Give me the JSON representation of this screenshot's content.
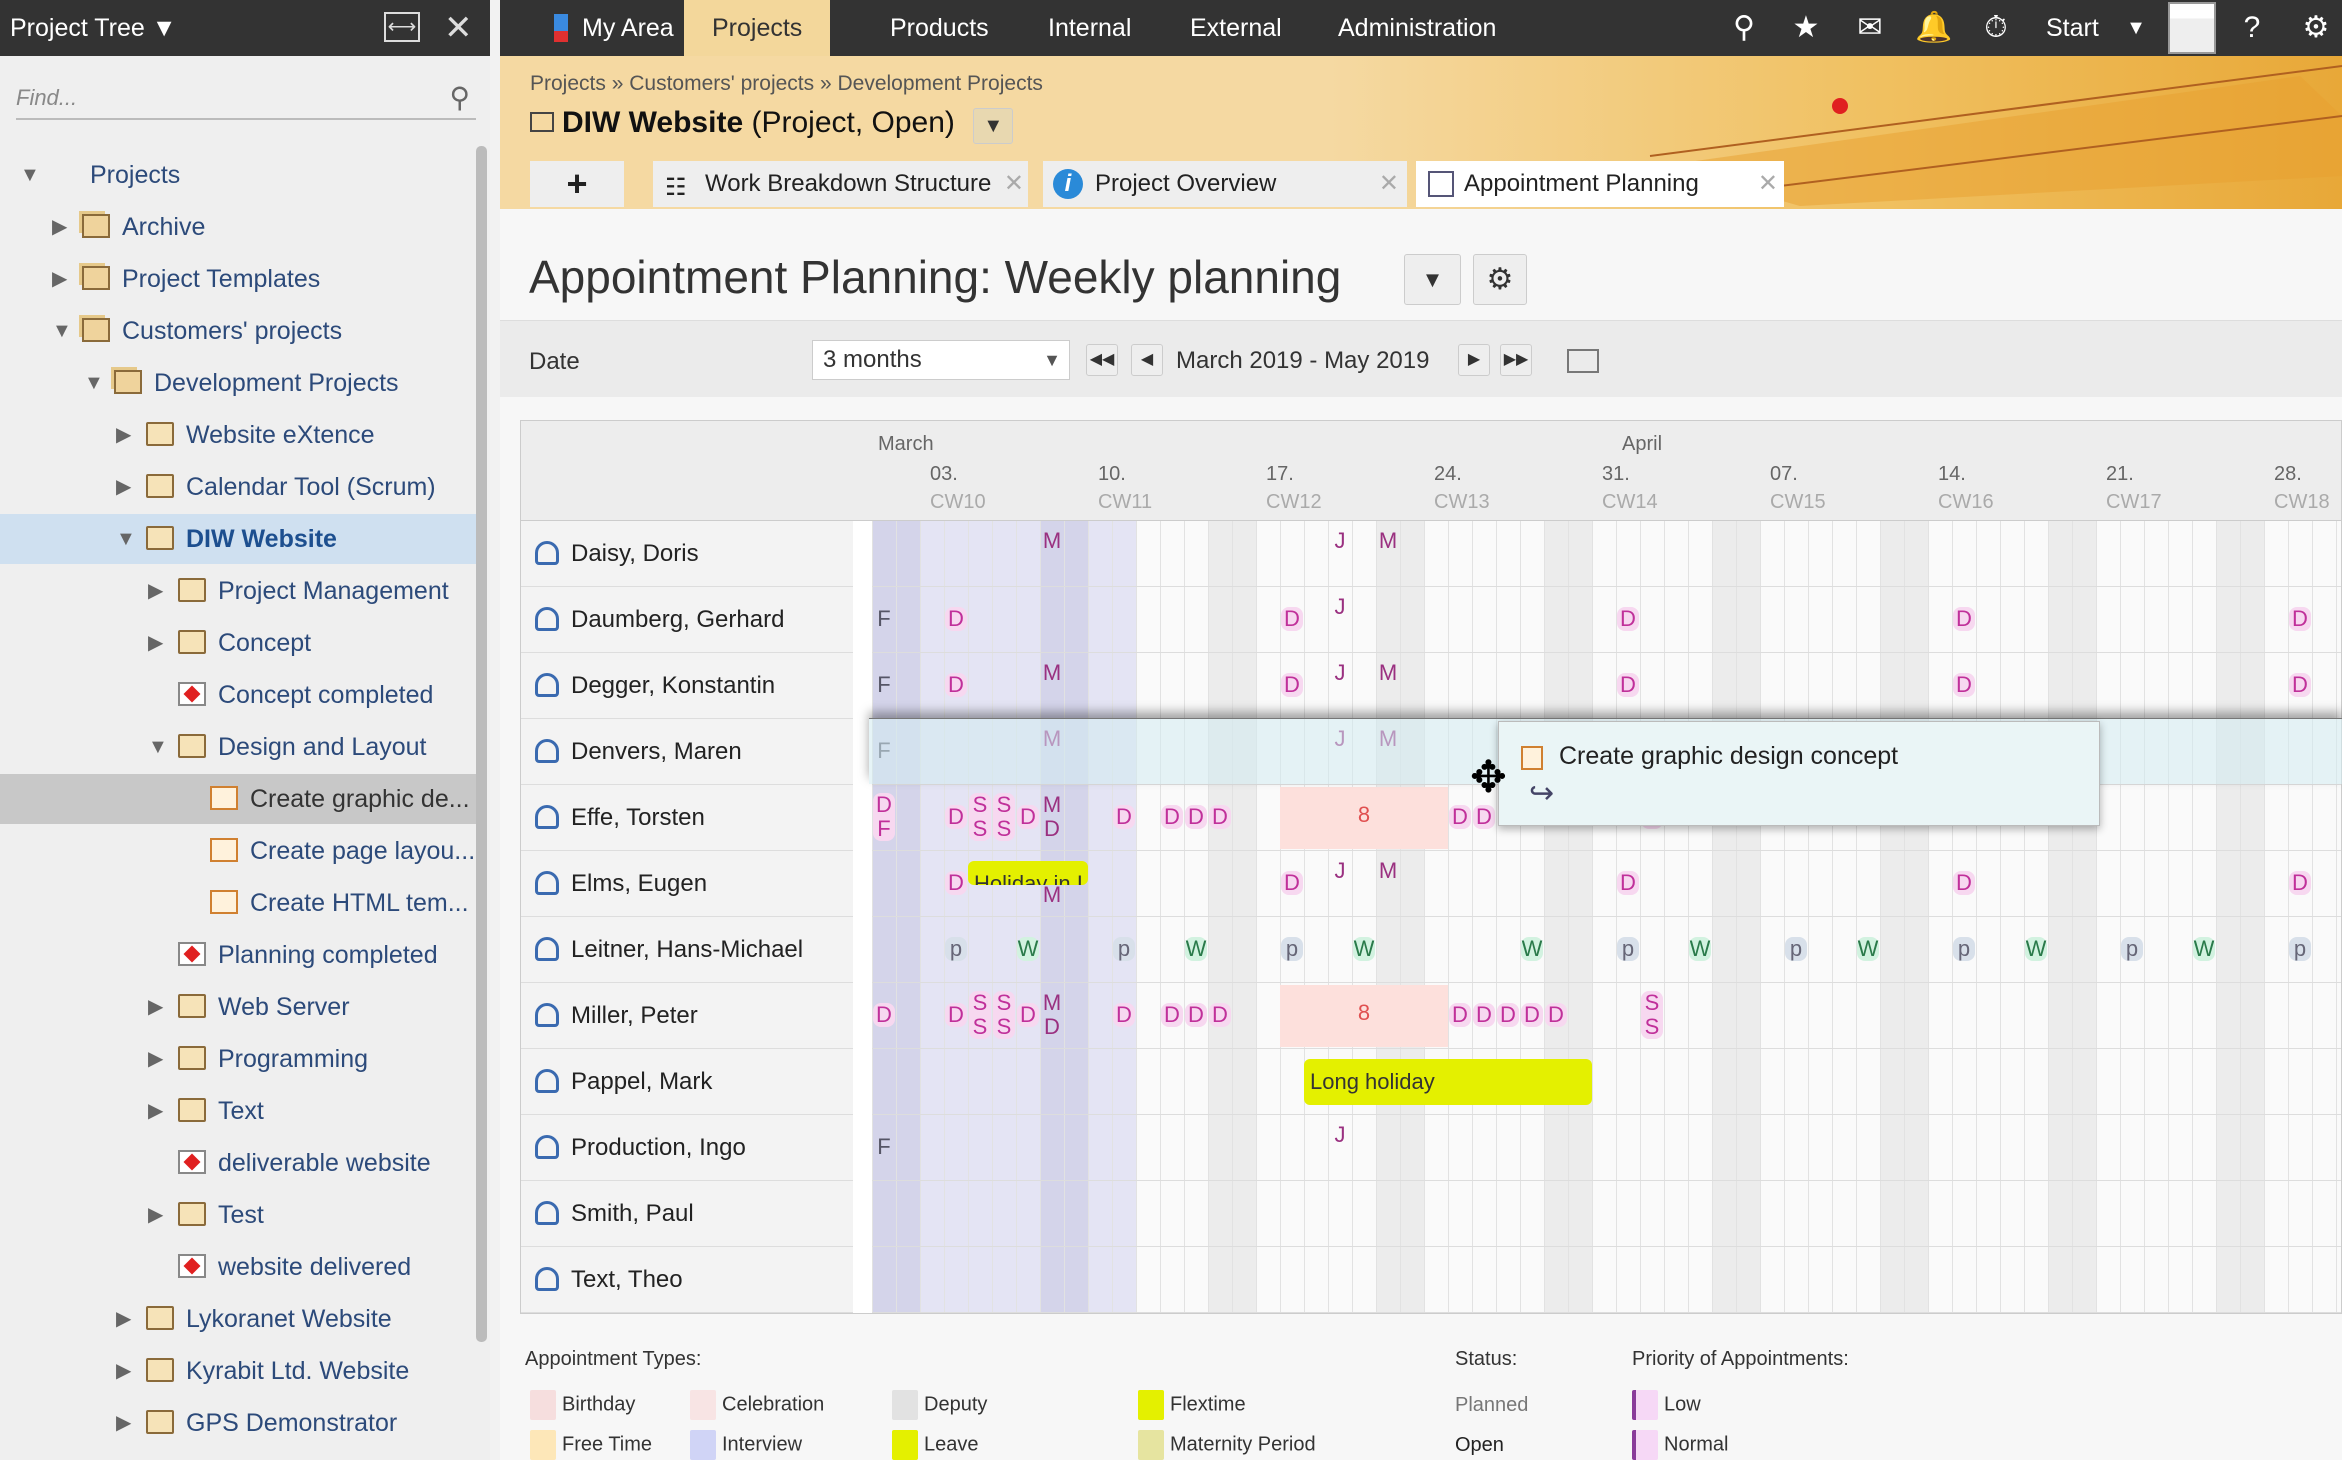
{
  "sidebar": {
    "title": "Project Tree",
    "find_placeholder": "Find...",
    "items": [
      {
        "label": "Projects",
        "level": 0,
        "toggle": "expanded",
        "icon": "projects"
      },
      {
        "label": "Archive",
        "level": 1,
        "toggle": "collapsed",
        "icon": "folders"
      },
      {
        "label": "Project Templates",
        "level": 1,
        "toggle": "collapsed",
        "icon": "folders"
      },
      {
        "label": "Customers' projects",
        "level": 1,
        "toggle": "expanded",
        "icon": "folders"
      },
      {
        "label": "Development Projects",
        "level": 2,
        "toggle": "expanded",
        "icon": "folders"
      },
      {
        "label": "Website eXtence",
        "level": 3,
        "toggle": "collapsed",
        "icon": "folder"
      },
      {
        "label": "Calendar Tool (Scrum)",
        "level": 3,
        "toggle": "collapsed",
        "icon": "folder"
      },
      {
        "label": "DIW Website",
        "level": 3,
        "toggle": "expanded",
        "icon": "folder",
        "state": "sel"
      },
      {
        "label": "Project Management",
        "level": 4,
        "toggle": "collapsed",
        "icon": "folder"
      },
      {
        "label": "Concept",
        "level": 4,
        "toggle": "collapsed",
        "icon": "folder"
      },
      {
        "label": "Concept completed",
        "level": 4,
        "toggle": "none",
        "icon": "ms"
      },
      {
        "label": "Design and Layout",
        "level": 4,
        "toggle": "expanded",
        "icon": "folder"
      },
      {
        "label": "Create graphic de...",
        "level": 5,
        "toggle": "none",
        "icon": "task",
        "state": "hl"
      },
      {
        "label": "Create page layou...",
        "level": 5,
        "toggle": "none",
        "icon": "task"
      },
      {
        "label": "Create HTML tem...",
        "level": 5,
        "toggle": "none",
        "icon": "task"
      },
      {
        "label": "Planning completed",
        "level": 4,
        "toggle": "none",
        "icon": "ms"
      },
      {
        "label": "Web Server",
        "level": 4,
        "toggle": "collapsed",
        "icon": "folder"
      },
      {
        "label": "Programming",
        "level": 4,
        "toggle": "collapsed",
        "icon": "folder"
      },
      {
        "label": "Text",
        "level": 4,
        "toggle": "collapsed",
        "icon": "folder"
      },
      {
        "label": "deliverable website",
        "level": 4,
        "toggle": "none",
        "icon": "ms"
      },
      {
        "label": "Test",
        "level": 4,
        "toggle": "collapsed",
        "icon": "folder"
      },
      {
        "label": "website delivered",
        "level": 4,
        "toggle": "none",
        "icon": "ms"
      },
      {
        "label": "Lykoranet Website",
        "level": 3,
        "toggle": "collapsed",
        "icon": "folder"
      },
      {
        "label": "Kyrabit Ltd. Website",
        "level": 3,
        "toggle": "collapsed",
        "icon": "folder"
      },
      {
        "label": "GPS Demonstrator",
        "level": 3,
        "toggle": "collapsed",
        "icon": "folder"
      }
    ]
  },
  "nav": {
    "tabs": [
      "My Area",
      "Projects",
      "Products",
      "Internal",
      "External",
      "Administration"
    ],
    "active": "Projects",
    "start_label": "Start",
    "icons": [
      "search-icon",
      "star-icon",
      "mail-icon",
      "bell-icon",
      "timer-icon",
      "help-icon",
      "gear-icon"
    ]
  },
  "header": {
    "breadcrumb": [
      "Projects",
      "Customers' projects",
      "Development Projects"
    ],
    "title": "DIW Website",
    "title_suffix": "(Project, Open)",
    "tabs": [
      "Work Breakdown Structure",
      "Project Overview",
      "Appointment Planning"
    ],
    "active_tab": "Appointment Planning"
  },
  "page": {
    "title": "Appointment Planning: Weekly planning",
    "date_label": "Date",
    "range_select": "3 months",
    "range_text": "March 2019 - May 2019"
  },
  "calendar": {
    "months": [
      {
        "label": "March",
        "day": 0
      },
      {
        "label": "April",
        "day": 31
      }
    ],
    "weeks": [
      {
        "d": "03.",
        "cw": "CW10",
        "day": 2
      },
      {
        "d": "10.",
        "cw": "CW11",
        "day": 9
      },
      {
        "d": "17.",
        "cw": "CW12",
        "day": 16
      },
      {
        "d": "24.",
        "cw": "CW13",
        "day": 23
      },
      {
        "d": "31.",
        "cw": "CW14",
        "day": 30
      },
      {
        "d": "07.",
        "cw": "CW15",
        "day": 37
      },
      {
        "d": "14.",
        "cw": "CW16",
        "day": 44
      },
      {
        "d": "21.",
        "cw": "CW17",
        "day": 51
      },
      {
        "d": "28.",
        "cw": "CW18",
        "day": 58
      }
    ],
    "people": [
      {
        "name": "Daisy, Doris",
        "marks": [
          [
            7,
            "M"
          ],
          [
            19,
            "J"
          ],
          [
            21,
            "M"
          ]
        ]
      },
      {
        "name": "Daumberg, Gerhard",
        "marks": [
          [
            0,
            "F"
          ],
          [
            3,
            "D"
          ],
          [
            17,
            "D"
          ],
          [
            19,
            "J"
          ],
          [
            31,
            "D"
          ],
          [
            45,
            "D"
          ],
          [
            59,
            "D"
          ]
        ]
      },
      {
        "name": "Degger, Konstantin",
        "marks": [
          [
            0,
            "F"
          ],
          [
            3,
            "D"
          ],
          [
            7,
            "M"
          ],
          [
            17,
            "D"
          ],
          [
            19,
            "J"
          ],
          [
            21,
            "M"
          ],
          [
            31,
            "D"
          ],
          [
            45,
            "D"
          ],
          [
            59,
            "D"
          ]
        ]
      },
      {
        "name": "Denvers, Maren",
        "marks": [
          [
            0,
            "F"
          ],
          [
            7,
            "M"
          ],
          [
            19,
            "J"
          ],
          [
            21,
            "M"
          ]
        ]
      },
      {
        "name": "Effe, Torsten",
        "marks": [
          [
            0,
            "D\nF"
          ],
          [
            3,
            "D"
          ],
          [
            4,
            "S\nS"
          ],
          [
            5,
            "S\nS"
          ],
          [
            6,
            "D"
          ],
          [
            7,
            "M\nD"
          ],
          [
            10,
            "D"
          ],
          [
            12,
            "D"
          ],
          [
            13,
            "D"
          ],
          [
            14,
            "D"
          ],
          [
            24,
            "D"
          ],
          [
            25,
            "D"
          ],
          [
            32,
            "S"
          ]
        ],
        "blocks": [
          {
            "start": 17,
            "end": 23,
            "label": "8",
            "kind": "count"
          }
        ]
      },
      {
        "name": "Elms, Eugen",
        "marks": [
          [
            3,
            "D"
          ],
          [
            7,
            "\nM"
          ],
          [
            17,
            "D"
          ],
          [
            19,
            "J"
          ],
          [
            21,
            "M"
          ],
          [
            31,
            "D"
          ],
          [
            45,
            "D"
          ],
          [
            59,
            "D"
          ]
        ],
        "blocks": [
          {
            "start": 4,
            "end": 8,
            "label": "Holiday in I",
            "kind": "holiday"
          }
        ]
      },
      {
        "name": "Leitner, Hans-Michael",
        "marks": [
          [
            3,
            "p"
          ],
          [
            6,
            "W"
          ],
          [
            10,
            "p"
          ],
          [
            13,
            "W"
          ],
          [
            17,
            "p"
          ],
          [
            20,
            "W"
          ],
          [
            27,
            "W"
          ],
          [
            31,
            "p"
          ],
          [
            34,
            "W"
          ],
          [
            38,
            "p"
          ],
          [
            41,
            "W"
          ],
          [
            45,
            "p"
          ],
          [
            48,
            "W"
          ],
          [
            52,
            "p"
          ],
          [
            55,
            "W"
          ],
          [
            59,
            "p"
          ]
        ]
      },
      {
        "name": "Miller, Peter",
        "marks": [
          [
            0,
            "D"
          ],
          [
            3,
            "D"
          ],
          [
            4,
            "S\nS"
          ],
          [
            5,
            "S\nS"
          ],
          [
            6,
            "D"
          ],
          [
            7,
            "M\nD"
          ],
          [
            10,
            "D"
          ],
          [
            12,
            "D"
          ],
          [
            13,
            "D"
          ],
          [
            14,
            "D"
          ],
          [
            24,
            "D"
          ],
          [
            25,
            "D"
          ],
          [
            26,
            "D"
          ],
          [
            27,
            "D"
          ],
          [
            28,
            "D"
          ],
          [
            32,
            "S\nS"
          ]
        ],
        "blocks": [
          {
            "start": 17,
            "end": 23,
            "label": "8",
            "kind": "count"
          }
        ]
      },
      {
        "name": "Pappel, Mark",
        "marks": [],
        "blocks": [
          {
            "start": 18,
            "end": 29,
            "label": "Long holiday",
            "kind": "holiday"
          }
        ]
      },
      {
        "name": "Production, Ingo",
        "marks": [
          [
            0,
            "F"
          ],
          [
            19,
            "J"
          ]
        ]
      },
      {
        "name": "Smith, Paul",
        "marks": []
      },
      {
        "name": "Text, Theo",
        "marks": []
      }
    ],
    "popup": {
      "title": "Create graphic design concept"
    }
  },
  "legend": {
    "types_title": "Appointment Types:",
    "types": [
      {
        "label": "Birthday",
        "color": "#f6dede"
      },
      {
        "label": "Celebration",
        "color": "#f8e4e4"
      },
      {
        "label": "Deputy",
        "color": "#e2e2e2"
      },
      {
        "label": "Flextime",
        "color": "#e4f000"
      },
      {
        "label": "Free Time",
        "color": "#fde7b8"
      },
      {
        "label": "Interview",
        "color": "#d0d4f6"
      },
      {
        "label": "Leave",
        "color": "#e4f000"
      },
      {
        "label": "Maternity Period",
        "color": "#e6e4a0"
      }
    ],
    "status_title": "Status:",
    "status": [
      "Planned",
      "Open"
    ],
    "priority_title": "Priority of Appointments:",
    "priority": [
      "Low",
      "Normal"
    ]
  },
  "colors": {
    "accent": "#f3d79b",
    "nav_bg": "#333333",
    "appointment": "#c0309a",
    "holiday": "#e4f000"
  }
}
